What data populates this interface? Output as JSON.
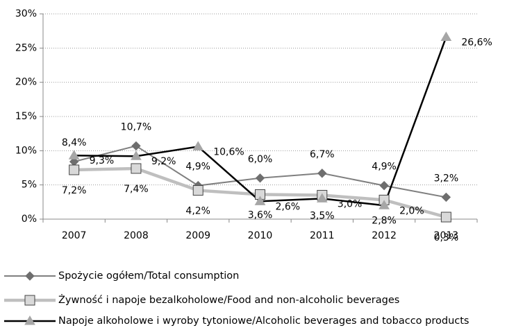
{
  "chart_data": {
    "type": "line",
    "categories": [
      "2007",
      "2008",
      "2009",
      "2010",
      "2011",
      "2012",
      "2013"
    ],
    "series": [
      {
        "name": "Spożycie ogółem/Total consumption",
        "color": "#7f7f7f",
        "marker": "diamond",
        "values": [
          8.4,
          10.7,
          4.9,
          6.0,
          6.7,
          4.9,
          3.2
        ],
        "value_labels": [
          "8,4%",
          "10,7%",
          "4,9%",
          "6,0%",
          "6,7%",
          "4,9%",
          "3,2%"
        ]
      },
      {
        "name": "Żywność i napoje bezalkoholowe/Food and non-alcoholic beverages",
        "color": "#bfbfbf",
        "marker": "square",
        "values": [
          7.2,
          7.4,
          4.2,
          3.6,
          3.5,
          2.8,
          0.3
        ],
        "value_labels": [
          "7,2%",
          "7,4%",
          "4,2%",
          "3,6%",
          "3,5%",
          "2,8%",
          "0,3%"
        ]
      },
      {
        "name": "Napoje alkoholowe i wyroby tytoniowe/Alcoholic beverages and tobacco products",
        "color": "#000000",
        "marker": "triangle",
        "values": [
          9.3,
          9.2,
          10.6,
          2.6,
          3.0,
          2.0,
          26.6
        ],
        "value_labels": [
          "9,3%",
          "9,2%",
          "10,6%",
          "2,6%",
          "3,0%",
          "2,0%",
          "26,6%"
        ]
      }
    ],
    "ylim": [
      0,
      30
    ],
    "yticks": [
      {
        "value": 0,
        "label": "0%"
      },
      {
        "value": 5,
        "label": "5%"
      },
      {
        "value": 10,
        "label": "10%"
      },
      {
        "value": 15,
        "label": "15%"
      },
      {
        "value": 20,
        "label": "20%"
      },
      {
        "value": 25,
        "label": "25%"
      },
      {
        "value": 30,
        "label": "30%"
      }
    ],
    "grid": true,
    "legend": "bottom"
  }
}
